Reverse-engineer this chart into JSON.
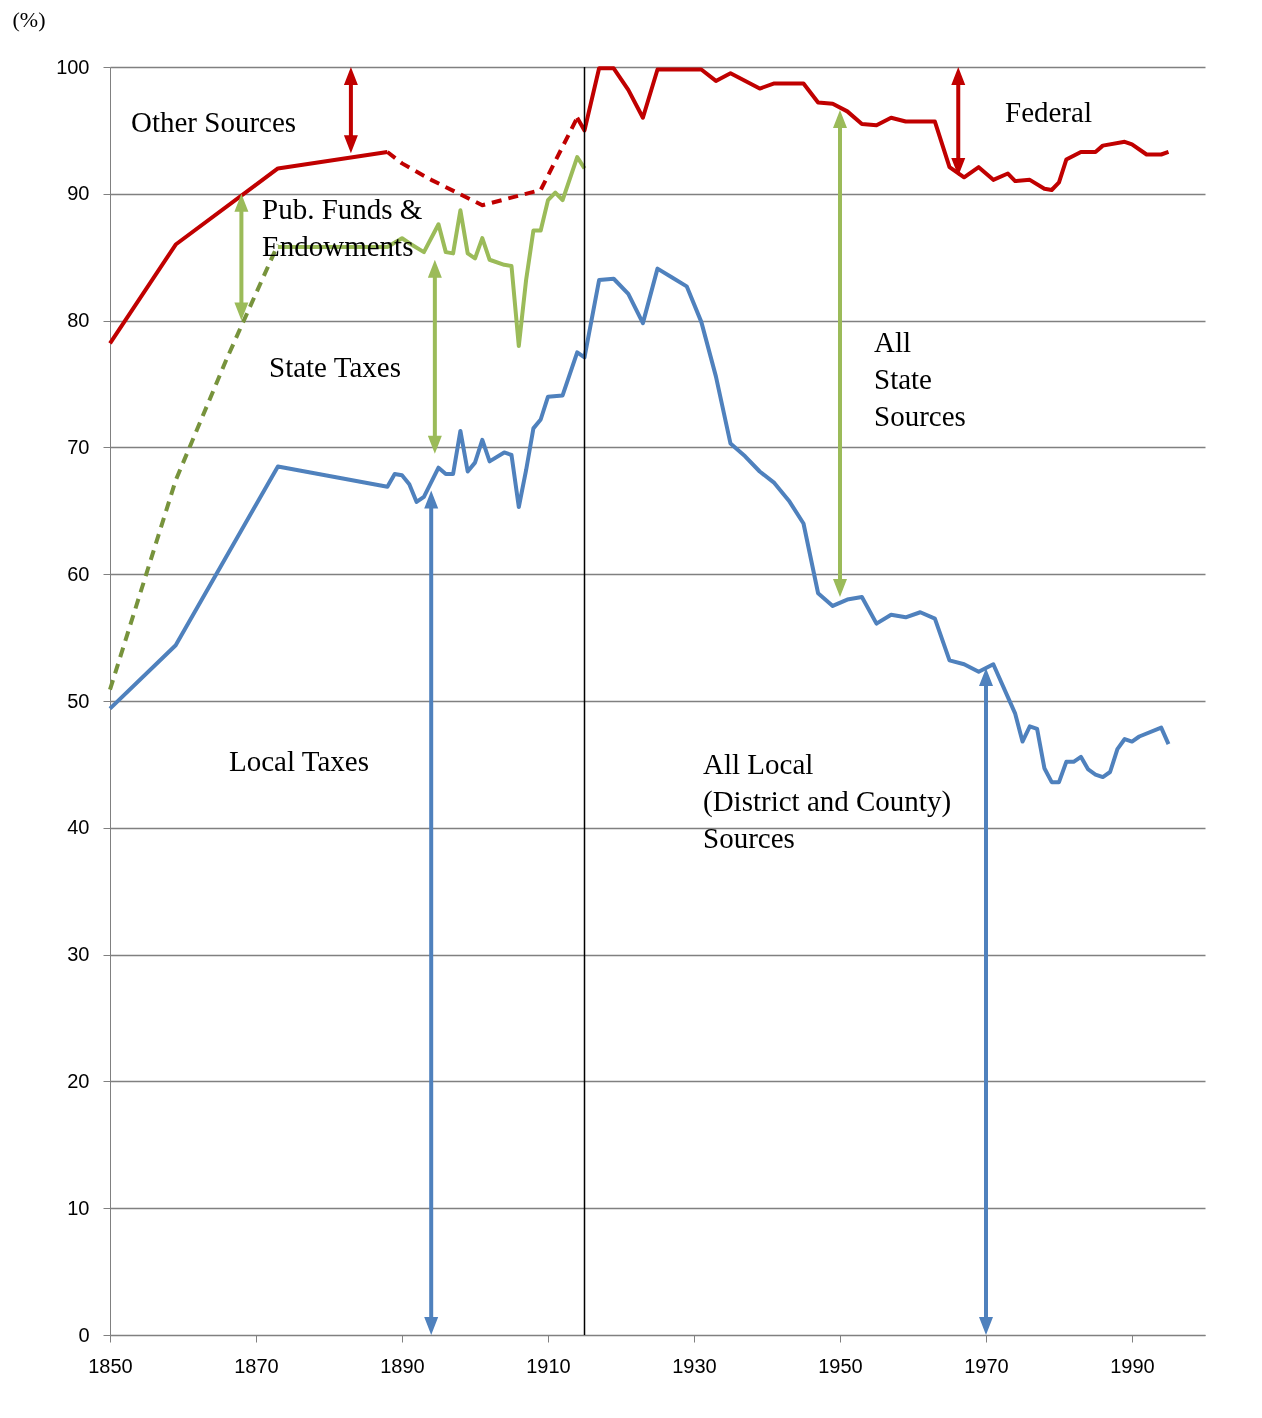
{
  "chart_data": {
    "type": "line",
    "ylabel": "(%)",
    "xlim": [
      1850,
      2000
    ],
    "xticks": [
      1850,
      1870,
      1890,
      1910,
      1930,
      1950,
      1970,
      1990
    ],
    "ylim": [
      0,
      100
    ],
    "yticks": [
      0,
      10,
      20,
      30,
      40,
      50,
      60,
      70,
      80,
      90,
      100
    ],
    "grid": "y",
    "marker": "none",
    "series": [
      {
        "color": "#c00000",
        "line_style": "solid",
        "x": [
          1850,
          1859,
          1873,
          1888
        ],
        "values": [
          78.2,
          86.0,
          92.0,
          93.3
        ]
      },
      {
        "color": "#c00000",
        "line_style": "dashed",
        "x": [
          1888,
          1890,
          1894,
          1901,
          1909,
          1914
        ],
        "values": [
          93.3,
          92.4,
          91.1,
          89.1,
          90.3,
          96.0
        ]
      },
      {
        "color": "#c00000",
        "line_style": "solid",
        "x": [
          1914,
          1915,
          1917,
          1919,
          1921,
          1923,
          1925,
          1931,
          1933,
          1935,
          1939,
          1941,
          1945,
          1947,
          1949,
          1951,
          1953,
          1955,
          1957,
          1959,
          1963,
          1965,
          1967,
          1969,
          1971,
          1973,
          1974,
          1976,
          1978,
          1979,
          1980,
          1981,
          1983,
          1985,
          1986,
          1989,
          1990,
          1992,
          1994,
          1995
        ],
        "values": [
          96.0,
          95.0,
          99.9,
          99.9,
          98.2,
          96.0,
          99.8,
          99.8,
          98.9,
          99.5,
          98.3,
          98.7,
          98.7,
          97.2,
          97.1,
          96.5,
          95.5,
          95.4,
          96.0,
          95.7,
          95.7,
          92.1,
          91.3,
          92.1,
          91.1,
          91.6,
          91.0,
          91.1,
          90.4,
          90.3,
          90.9,
          92.7,
          93.3,
          93.3,
          93.8,
          94.1,
          93.9,
          93.1,
          93.1,
          93.3
        ]
      },
      {
        "color": "#77933c",
        "line_style": "dashed",
        "x": [
          1850,
          1859,
          1866,
          1873
        ],
        "values": [
          50.9,
          67.4,
          77.0,
          86.0
        ]
      },
      {
        "color": "#9bbb59",
        "line_style": "solid",
        "x": [
          1873,
          1888,
          1890,
          1891,
          1893,
          1895,
          1896,
          1897,
          1898,
          1899,
          1900,
          1901,
          1902,
          1904,
          1905,
          1906,
          1907,
          1908,
          1909,
          1910,
          1911,
          1912,
          1914,
          1915
        ],
        "values": [
          85.8,
          85.8,
          86.5,
          86.1,
          85.4,
          87.6,
          85.4,
          85.3,
          88.7,
          85.3,
          84.9,
          86.5,
          84.8,
          84.4,
          84.3,
          78.0,
          83.2,
          87.1,
          87.1,
          89.5,
          90.1,
          89.5,
          92.9,
          92.0
        ]
      },
      {
        "color": "#4f81bd",
        "line_style": "solid",
        "x": [
          1850,
          1859,
          1873,
          1888,
          1889,
          1890,
          1891,
          1892,
          1893,
          1895,
          1896,
          1897,
          1898,
          1899,
          1900,
          1901,
          1902,
          1904,
          1905,
          1906,
          1907,
          1908,
          1909,
          1910,
          1912,
          1914,
          1915,
          1917,
          1919,
          1921,
          1923,
          1925,
          1927,
          1929,
          1931,
          1933,
          1935,
          1937,
          1939,
          1941,
          1943,
          1945,
          1947,
          1949,
          1951,
          1953,
          1955,
          1957,
          1959,
          1961,
          1963,
          1965,
          1967,
          1969,
          1971,
          1974,
          1975,
          1976,
          1977,
          1978,
          1979,
          1980,
          1981,
          1982,
          1983,
          1984,
          1985,
          1986,
          1987,
          1988,
          1989,
          1990,
          1991,
          1994,
          1995
        ],
        "values": [
          49.4,
          54.4,
          68.5,
          66.9,
          67.9,
          67.8,
          67.1,
          65.7,
          66.1,
          68.4,
          67.9,
          67.9,
          71.3,
          68.1,
          68.8,
          70.6,
          68.9,
          69.6,
          69.4,
          65.3,
          68.2,
          71.5,
          72.2,
          74.0,
          74.1,
          77.5,
          77.1,
          83.2,
          83.3,
          82.1,
          79.8,
          84.1,
          83.4,
          82.7,
          79.9,
          75.6,
          70.3,
          69.3,
          68.1,
          67.2,
          65.8,
          64.0,
          58.5,
          57.5,
          58.0,
          58.2,
          56.1,
          56.8,
          56.6,
          57.0,
          56.5,
          53.2,
          52.9,
          52.3,
          52.9,
          49.0,
          46.8,
          48.0,
          47.8,
          44.7,
          43.6,
          43.6,
          45.2,
          45.2,
          45.6,
          44.6,
          44.2,
          44.0,
          44.4,
          46.2,
          47.0,
          46.8,
          47.2,
          47.9,
          46.6
        ]
      }
    ],
    "ref_lines": [
      {
        "axis": "x",
        "value": 1915,
        "color": "#000000"
      }
    ],
    "annotations": [
      "Other Sources",
      "Pub. Funds &\nEndowments",
      "State Taxes",
      "Local Taxes",
      "Federal",
      "All\nState\nSources",
      "All Local\n(District and County)\nSources"
    ]
  }
}
